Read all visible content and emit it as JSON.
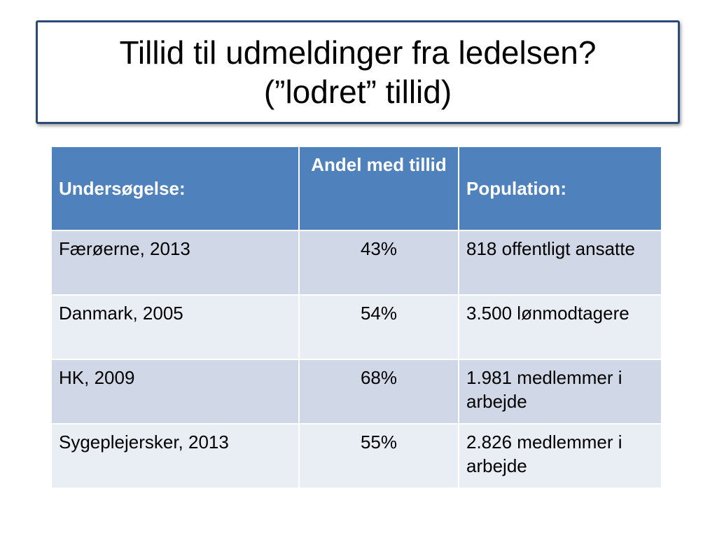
{
  "title": {
    "line1": "Tillid til udmeldinger fra ledelsen?",
    "line2": "(”lodret” tillid)"
  },
  "table": {
    "headers": [
      "Undersøgelse:",
      "Andel med tillid",
      "Population:"
    ],
    "rows": [
      [
        "Færøerne, 2013",
        "43%",
        "818 offentligt ansatte"
      ],
      [
        "Danmark, 2005",
        "54%",
        "3.500 lønmodtagere"
      ],
      [
        "HK, 2009",
        "68%",
        "1.981 medlemmer i arbejde"
      ],
      [
        "Sygeplejersker, 2013",
        "55%",
        "2.826 medlemmer i arbejde"
      ]
    ]
  },
  "colors": {
    "header_bg": "#4f81bd",
    "row_odd_bg": "#d0d8e8",
    "row_even_bg": "#e9edf4",
    "title_border": "#2c4a78"
  }
}
